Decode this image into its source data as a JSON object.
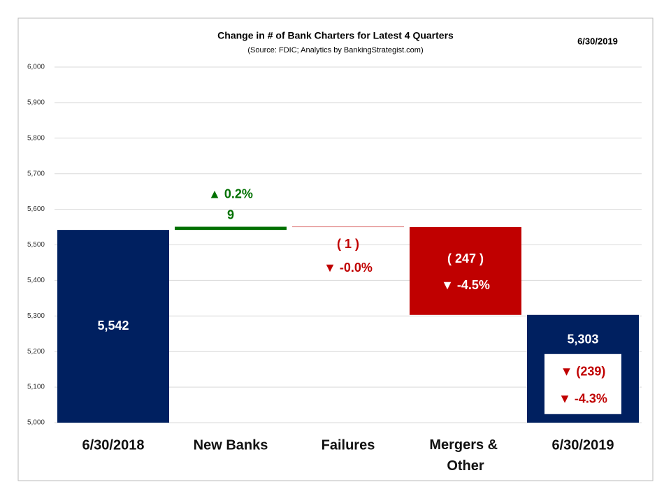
{
  "chart_data": {
    "type": "waterfall",
    "title": "Change in # of Bank Charters for Latest 4 Quarters",
    "subtitle": "(Source: FDIC; Analytics by BankingStrategist.com)",
    "date": "6/30/2019",
    "categories": [
      "6/30/2018",
      "New Banks",
      "Failures",
      "Mergers & Other",
      "6/30/2019"
    ],
    "kinds": [
      "total",
      "change",
      "change",
      "change",
      "total"
    ],
    "values": [
      5542,
      9,
      -1,
      -247,
      5303
    ],
    "value_labels": [
      "5,542",
      "9",
      "( 1 )",
      "( 247 )",
      "5,303"
    ],
    "pct_labels": [
      null,
      "▲ 0.2%",
      "▼ -0.0%",
      "▼ -4.5%",
      "▼ -4.3%"
    ],
    "net_change_label": "▼ (239)",
    "colors": {
      "total": "#002060",
      "increase": "#007000",
      "decrease": "#c00000"
    },
    "ylim": [
      5000,
      6000
    ],
    "yticks": [
      {
        "value": 5000,
        "label": "5,000"
      },
      {
        "value": 5100,
        "label": "5,100"
      },
      {
        "value": 5200,
        "label": "5,200"
      },
      {
        "value": 5300,
        "label": "5,300"
      },
      {
        "value": 5400,
        "label": "5,400"
      },
      {
        "value": 5500,
        "label": "5,500"
      },
      {
        "value": 5600,
        "label": "5,600"
      },
      {
        "value": 5700,
        "label": "5,700"
      },
      {
        "value": 5800,
        "label": "5,800"
      },
      {
        "value": 5900,
        "label": "5,900"
      },
      {
        "value": 6000,
        "label": "6,000"
      }
    ],
    "grid": true
  }
}
